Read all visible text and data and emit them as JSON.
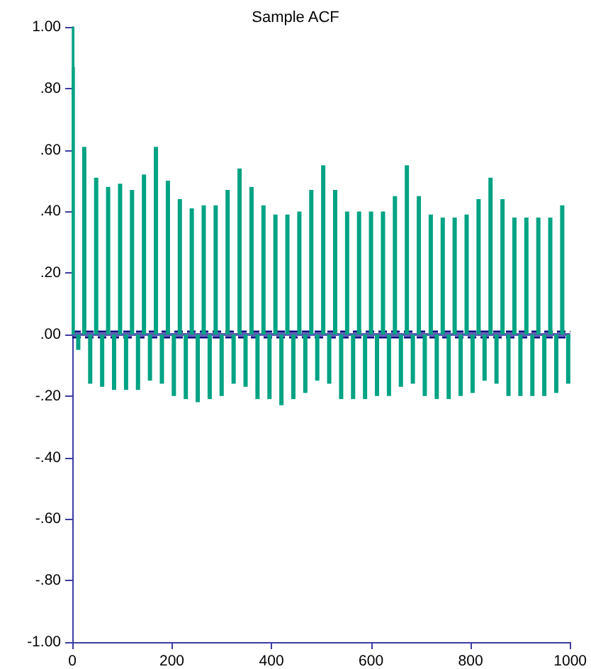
{
  "chart_data": {
    "type": "bar",
    "title": "Sample ACF",
    "x": [
      0,
      1,
      12,
      24,
      36,
      48,
      60,
      72,
      84,
      96,
      108,
      120,
      132,
      144,
      156,
      168,
      180,
      192,
      204,
      216,
      228,
      240,
      252,
      264,
      276,
      288,
      300,
      312,
      324,
      336,
      348,
      360,
      372,
      384,
      396,
      408,
      420,
      432,
      444,
      456,
      468,
      480,
      492,
      504,
      516,
      528,
      540,
      552,
      564,
      576,
      588,
      600,
      612,
      624,
      636,
      648,
      660,
      672,
      684,
      696,
      708,
      720,
      732,
      744,
      756,
      768,
      780,
      792,
      804,
      816,
      828,
      840,
      852,
      864,
      876,
      888,
      900,
      912,
      924,
      936,
      948,
      960,
      972,
      984,
      996
    ],
    "values": [
      1.0,
      0.87,
      -0.05,
      0.61,
      -0.16,
      0.51,
      -0.17,
      0.48,
      -0.18,
      0.49,
      -0.18,
      0.47,
      -0.18,
      0.52,
      -0.15,
      0.61,
      -0.16,
      0.5,
      -0.2,
      0.44,
      -0.21,
      0.41,
      -0.22,
      0.42,
      -0.21,
      0.42,
      -0.2,
      0.47,
      -0.16,
      0.54,
      -0.17,
      0.48,
      -0.21,
      0.42,
      -0.21,
      0.39,
      -0.23,
      0.39,
      -0.21,
      0.4,
      -0.19,
      0.47,
      -0.15,
      0.55,
      -0.16,
      0.47,
      -0.21,
      0.4,
      -0.21,
      0.4,
      -0.21,
      0.4,
      -0.2,
      0.4,
      -0.2,
      0.45,
      -0.17,
      0.55,
      -0.16,
      0.45,
      -0.2,
      0.39,
      -0.21,
      0.38,
      -0.21,
      0.38,
      -0.2,
      0.39,
      -0.19,
      0.44,
      -0.15,
      0.51,
      -0.16,
      0.44,
      -0.2,
      0.38,
      -0.2,
      0.38,
      -0.2,
      0.38,
      -0.2,
      0.38,
      -0.19,
      0.42,
      -0.16
    ],
    "color": "#00a383",
    "xlim": [
      0,
      1000
    ],
    "xticks": [
      0,
      200,
      400,
      600,
      800,
      1000
    ],
    "ylim": [
      -1,
      1
    ],
    "yticks": [
      {
        "value": -1,
        "label": "-1.00"
      },
      {
        "value": -0.8,
        "label": "-.80"
      },
      {
        "value": -0.6,
        "label": "-.60"
      },
      {
        "value": -0.4,
        "label": "-.40"
      },
      {
        "value": -0.2,
        "label": "-.20"
      },
      {
        "value": 0,
        "label": ".00"
      },
      {
        "value": 0.2,
        "label": ".20"
      },
      {
        "value": 0.4,
        "label": ".40"
      },
      {
        "value": 0.6,
        "label": ".60"
      },
      {
        "value": 0.8,
        "label": ".80"
      },
      {
        "value": 1,
        "label": "1.00"
      }
    ],
    "ref_lines": [
      {
        "axis": "y",
        "value": 0,
        "color": "#5a5ab4",
        "line_style": "solid"
      },
      {
        "axis": "y",
        "value": 0.015,
        "color": "#000080",
        "line_style": "dashed"
      },
      {
        "axis": "y",
        "value": -0.015,
        "color": "#000080",
        "line_style": "dashed"
      }
    ],
    "grid": false
  }
}
